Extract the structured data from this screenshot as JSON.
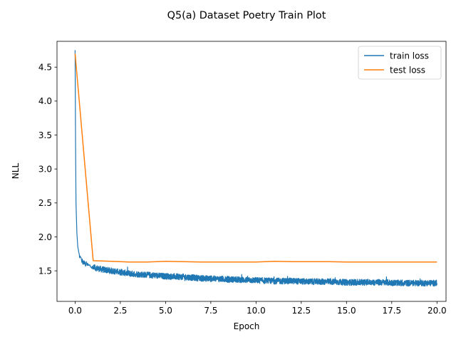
{
  "chart_data": {
    "type": "line",
    "title": "Q5(a) Dataset Poetry Train Plot",
    "xlabel": "Epoch",
    "ylabel": "NLL",
    "xlim": [
      -1.0,
      20.5
    ],
    "ylim": [
      1.05,
      4.88
    ],
    "grid": false,
    "legend_position": "top-right",
    "x_ticks": [
      0.0,
      2.5,
      5.0,
      7.5,
      10.0,
      12.5,
      15.0,
      17.5,
      20.0
    ],
    "x_tick_labels": [
      "0.0",
      "2.5",
      "5.0",
      "7.5",
      "10.0",
      "12.5",
      "15.0",
      "17.5",
      "20.0"
    ],
    "y_ticks": [
      1.5,
      2.0,
      2.5,
      3.0,
      3.5,
      4.0,
      4.5
    ],
    "y_tick_labels": [
      "1.5",
      "2.0",
      "2.5",
      "3.0",
      "3.5",
      "4.0",
      "4.5"
    ],
    "series": [
      {
        "name": "train loss",
        "color": "#1f77b4",
        "style": "noisy",
        "noise_amplitude": 0.09,
        "x": [
          0.0,
          0.02,
          0.05,
          0.1,
          0.15,
          0.2,
          0.3,
          0.4,
          0.5,
          0.7,
          1.0,
          1.5,
          2.0,
          2.5,
          3.0,
          4.0,
          5.0,
          6.0,
          7.0,
          8.0,
          9.0,
          10.0,
          11.0,
          12.0,
          13.0,
          14.0,
          15.0,
          16.0,
          17.0,
          18.0,
          19.0,
          20.0
        ],
        "y": [
          4.75,
          3.6,
          2.5,
          2.05,
          1.85,
          1.76,
          1.68,
          1.64,
          1.61,
          1.58,
          1.55,
          1.52,
          1.5,
          1.48,
          1.46,
          1.44,
          1.42,
          1.41,
          1.39,
          1.38,
          1.37,
          1.36,
          1.35,
          1.35,
          1.34,
          1.34,
          1.33,
          1.33,
          1.33,
          1.32,
          1.32,
          1.32
        ]
      },
      {
        "name": "test loss",
        "color": "#ff7f0e",
        "style": "solid",
        "x": [
          0,
          1,
          2,
          3,
          4,
          5,
          6,
          7,
          8,
          9,
          10,
          11,
          12,
          13,
          14,
          15,
          16,
          17,
          18,
          19,
          20
        ],
        "y": [
          4.7,
          1.65,
          1.64,
          1.63,
          1.63,
          1.64,
          1.635,
          1.63,
          1.63,
          1.63,
          1.63,
          1.64,
          1.635,
          1.635,
          1.635,
          1.63,
          1.63,
          1.63,
          1.63,
          1.63,
          1.63
        ]
      }
    ]
  }
}
